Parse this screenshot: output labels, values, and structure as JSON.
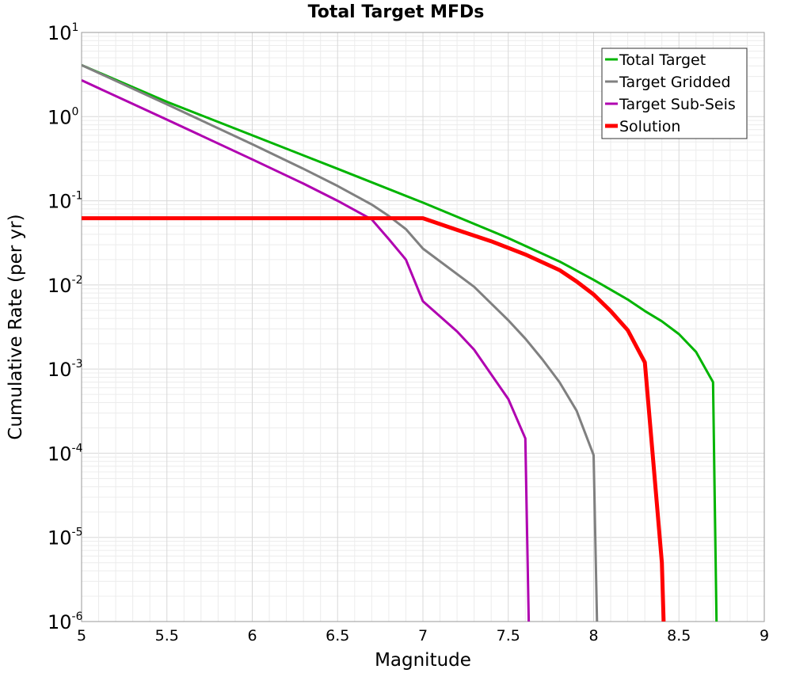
{
  "chart_data": {
    "type": "line",
    "title": "Total Target MFDs",
    "xlabel": "Magnitude",
    "ylabel": "Cumulative Rate (per yr)",
    "xlim": [
      5,
      9
    ],
    "ylim": [
      1e-06,
      10
    ],
    "yscale": "log",
    "x_ticks": [
      "5",
      "5.5",
      "6",
      "6.5",
      "7",
      "7.5",
      "8",
      "8.5",
      "9"
    ],
    "y_tick_exponents": [
      "1",
      "0",
      "-1",
      "-2",
      "-3",
      "-4",
      "-5",
      "-6"
    ],
    "y_tick_base": "10",
    "grid": true,
    "legend_position": "top-right",
    "series": [
      {
        "name": "Total Target",
        "color": "#00b400",
        "x": [
          5.0,
          5.5,
          6.0,
          6.5,
          7.0,
          7.5,
          7.8,
          8.0,
          8.2,
          8.3,
          8.4,
          8.5,
          8.6,
          8.7,
          8.72
        ],
        "y": [
          4.1,
          1.5,
          0.6,
          0.24,
          0.095,
          0.036,
          0.019,
          0.0115,
          0.0067,
          0.0049,
          0.0037,
          0.0026,
          0.0016,
          0.0007,
          1e-06
        ]
      },
      {
        "name": "Target Gridded",
        "color": "#808080",
        "x": [
          5.0,
          5.5,
          6.0,
          6.3,
          6.5,
          6.7,
          6.8,
          6.9,
          7.0,
          7.3,
          7.5,
          7.6,
          7.7,
          7.8,
          7.9,
          8.0,
          8.02
        ],
        "y": [
          4.1,
          1.4,
          0.47,
          0.24,
          0.15,
          0.09,
          0.066,
          0.046,
          0.027,
          0.0095,
          0.0038,
          0.0023,
          0.0013,
          0.0007,
          0.00032,
          9.5e-05,
          1e-06
        ]
      },
      {
        "name": "Target Sub-Seis",
        "color": "#b000b0",
        "x": [
          5.0,
          5.5,
          6.0,
          6.3,
          6.5,
          6.7,
          6.8,
          6.9,
          7.0,
          7.2,
          7.3,
          7.5,
          7.6,
          7.62
        ],
        "y": [
          2.7,
          0.92,
          0.31,
          0.16,
          0.1,
          0.06,
          0.035,
          0.02,
          0.0064,
          0.0028,
          0.0017,
          0.00044,
          0.00015,
          1e-06
        ]
      },
      {
        "name": "Solution",
        "color": "#ff0000",
        "x": [
          5.0,
          7.0,
          7.2,
          7.4,
          7.6,
          7.8,
          7.9,
          8.0,
          8.1,
          8.2,
          8.3,
          8.4,
          8.41
        ],
        "y": [
          0.062,
          0.062,
          0.045,
          0.033,
          0.023,
          0.015,
          0.011,
          0.0077,
          0.0049,
          0.0029,
          0.0012,
          5e-06,
          1e-06
        ]
      }
    ]
  }
}
